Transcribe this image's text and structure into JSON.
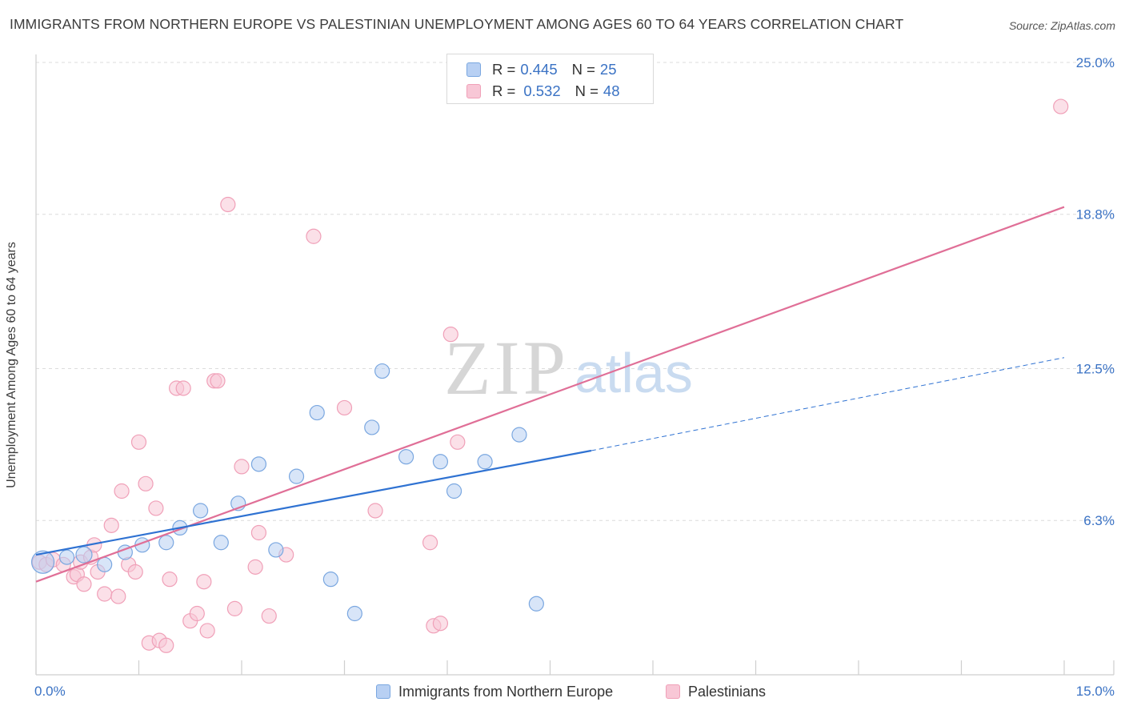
{
  "title": "IMMIGRANTS FROM NORTHERN EUROPE VS PALESTINIAN UNEMPLOYMENT AMONG AGES 60 TO 64 YEARS CORRELATION CHART",
  "source": "Source: ZipAtlas.com",
  "watermark": {
    "zip": "ZIP",
    "atlas": "atlas"
  },
  "legend": {
    "r_label": "R =",
    "n_label": "N =",
    "rows": [
      {
        "r": "0.445",
        "n": "25"
      },
      {
        "r": "0.532",
        "n": "48"
      }
    ]
  },
  "chart_data": {
    "type": "scatter",
    "title": "IMMIGRANTS FROM NORTHERN EUROPE VS PALESTINIAN UNEMPLOYMENT AMONG AGES 60 TO 64 YEARS CORRELATION CHART",
    "xlabel": "",
    "ylabel": "Unemployment Among Ages 60 to 64 years",
    "xlim": [
      0,
      15
    ],
    "ylim": [
      0,
      25
    ],
    "x_tick_labels": [
      {
        "value": 0,
        "label": "0.0%"
      },
      {
        "value": 15,
        "label": "15.0%"
      }
    ],
    "y_tick_labels": [
      {
        "value": 6.3,
        "label": "6.3%"
      },
      {
        "value": 12.5,
        "label": "12.5%"
      },
      {
        "value": 18.8,
        "label": "18.8%"
      },
      {
        "value": 25.0,
        "label": "25.0%"
      }
    ],
    "legend_position": "top-center",
    "series": [
      {
        "name": "Immigrants from Northern Europe",
        "color": "#7aa7e0",
        "fill": "#b8d0f3",
        "line_color": "#2f72d2",
        "R": 0.445,
        "N": 25,
        "trend": {
          "x0": 0.0,
          "y0": 4.9,
          "x1": 8.1,
          "y1": 9.15,
          "x_dash_end": 15.0,
          "y_dash_end": 12.95
        },
        "points": [
          [
            0.1,
            4.6,
            14
          ],
          [
            0.7,
            4.9,
            10
          ],
          [
            1.0,
            4.5,
            9
          ],
          [
            1.3,
            5.0,
            9
          ],
          [
            1.55,
            5.3,
            9
          ],
          [
            1.9,
            5.4,
            9
          ],
          [
            2.1,
            6.0,
            9
          ],
          [
            2.4,
            6.7,
            9
          ],
          [
            2.7,
            5.4,
            9
          ],
          [
            2.95,
            7.0,
            9
          ],
          [
            3.25,
            8.6,
            9
          ],
          [
            3.5,
            5.1,
            9
          ],
          [
            3.8,
            8.1,
            9
          ],
          [
            4.1,
            10.7,
            9
          ],
          [
            4.3,
            3.9,
            9
          ],
          [
            4.65,
            2.5,
            9
          ],
          [
            4.9,
            10.1,
            9
          ],
          [
            5.05,
            12.4,
            9
          ],
          [
            5.4,
            8.9,
            9
          ],
          [
            5.9,
            8.7,
            9
          ],
          [
            6.1,
            7.5,
            9
          ],
          [
            6.55,
            8.7,
            9
          ],
          [
            7.05,
            9.8,
            9
          ],
          [
            7.3,
            2.9,
            9
          ],
          [
            0.45,
            4.8,
            9
          ]
        ]
      },
      {
        "name": "Palestinians",
        "color": "#f0a0b8",
        "fill": "#f8c7d6",
        "line_color": "#e06f97",
        "R": 0.532,
        "N": 48,
        "trend": {
          "x0": 0.0,
          "y0": 3.8,
          "x1": 15.0,
          "y1": 19.1
        },
        "points": [
          [
            0.05,
            4.6,
            9
          ],
          [
            0.15,
            4.5,
            9
          ],
          [
            0.25,
            4.7,
            9
          ],
          [
            0.4,
            4.5,
            9
          ],
          [
            0.55,
            4.0,
            9
          ],
          [
            0.6,
            4.1,
            9
          ],
          [
            0.65,
            4.6,
            9
          ],
          [
            0.7,
            3.7,
            9
          ],
          [
            0.8,
            4.8,
            9
          ],
          [
            0.85,
            5.3,
            9
          ],
          [
            0.9,
            4.2,
            9
          ],
          [
            1.0,
            3.3,
            9
          ],
          [
            1.1,
            6.1,
            9
          ],
          [
            1.2,
            3.2,
            9
          ],
          [
            1.25,
            7.5,
            9
          ],
          [
            1.35,
            4.5,
            9
          ],
          [
            1.45,
            4.2,
            9
          ],
          [
            1.5,
            9.5,
            9
          ],
          [
            1.6,
            7.8,
            9
          ],
          [
            1.65,
            1.3,
            9
          ],
          [
            1.75,
            6.8,
            9
          ],
          [
            1.8,
            1.4,
            9
          ],
          [
            1.9,
            1.2,
            9
          ],
          [
            1.95,
            3.9,
            9
          ],
          [
            2.05,
            11.7,
            9
          ],
          [
            2.15,
            11.7,
            9
          ],
          [
            2.25,
            2.2,
            9
          ],
          [
            2.35,
            2.5,
            9
          ],
          [
            2.45,
            3.8,
            9
          ],
          [
            2.5,
            1.8,
            9
          ],
          [
            2.6,
            12.0,
            9
          ],
          [
            2.65,
            12.0,
            9
          ],
          [
            2.8,
            19.2,
            9
          ],
          [
            2.9,
            2.7,
            9
          ],
          [
            3.0,
            8.5,
            9
          ],
          [
            3.2,
            4.4,
            9
          ],
          [
            3.25,
            5.8,
            9
          ],
          [
            3.4,
            2.4,
            9
          ],
          [
            3.65,
            4.9,
            9
          ],
          [
            4.05,
            17.9,
            9
          ],
          [
            4.5,
            10.9,
            9
          ],
          [
            4.95,
            6.7,
            9
          ],
          [
            5.75,
            5.4,
            9
          ],
          [
            5.8,
            2.0,
            9
          ],
          [
            5.9,
            2.1,
            9
          ],
          [
            6.05,
            13.9,
            9
          ],
          [
            6.15,
            9.5,
            9
          ],
          [
            14.95,
            23.2,
            9
          ]
        ]
      }
    ]
  }
}
